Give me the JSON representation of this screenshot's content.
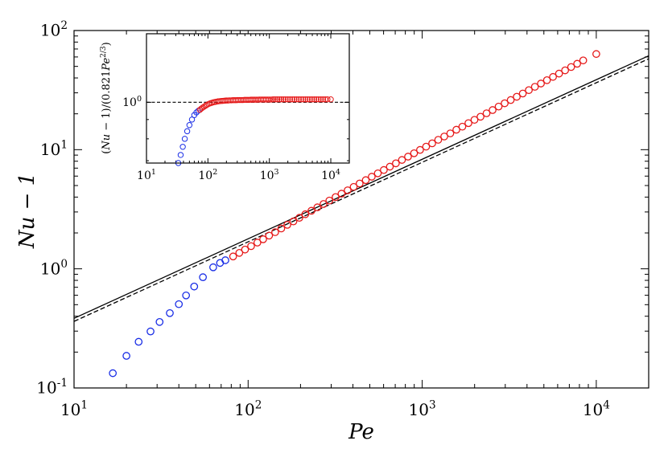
{
  "chart_data": [
    {
      "type": "scatter",
      "xscale": "log",
      "yscale": "log",
      "xlim": [
        10,
        20000
      ],
      "ylim": [
        0.1,
        100
      ],
      "xlabel": "Pe",
      "ylabel": "Nu − 1",
      "x_tick_labels": [
        {
          "base": "10",
          "exp": "1"
        },
        {
          "base": "10",
          "exp": "2"
        },
        {
          "base": "10",
          "exp": "3"
        },
        {
          "base": "10",
          "exp": "4"
        }
      ],
      "y_tick_labels": [
        {
          "base": "10",
          "exp": "-1"
        },
        {
          "base": "10",
          "exp": "0"
        },
        {
          "base": "10",
          "exp": "1"
        },
        {
          "base": "10",
          "exp": "2"
        }
      ],
      "grid": false,
      "series": [
        {
          "marker": "open-circle",
          "color": "#1a2ee6",
          "points": [
            [
              16.7,
              0.133
            ],
            [
              20.0,
              0.186
            ],
            [
              23.5,
              0.244
            ],
            [
              27.5,
              0.298
            ],
            [
              31.0,
              0.358
            ],
            [
              35.5,
              0.425
            ],
            [
              40.0,
              0.505
            ],
            [
              44.0,
              0.598
            ],
            [
              49.0,
              0.71
            ],
            [
              55.0,
              0.85
            ],
            [
              63.0,
              1.03
            ],
            [
              69.0,
              1.12
            ],
            [
              74.0,
              1.18
            ]
          ]
        },
        {
          "marker": "open-circle",
          "color": "#e61a1a",
          "points": [
            [
              82,
              1.27
            ],
            [
              89,
              1.36
            ],
            [
              96,
              1.45
            ],
            [
              104,
              1.55
            ],
            [
              113,
              1.66
            ],
            [
              122,
              1.77
            ],
            [
              132,
              1.9
            ],
            [
              143,
              2.03
            ],
            [
              155,
              2.18
            ],
            [
              168,
              2.34
            ],
            [
              182,
              2.5
            ],
            [
              197,
              2.68
            ],
            [
              213,
              2.87
            ],
            [
              231,
              3.07
            ],
            [
              250,
              3.28
            ],
            [
              271,
              3.5
            ],
            [
              293,
              3.74
            ],
            [
              318,
              4.0
            ],
            [
              344,
              4.27
            ],
            [
              373,
              4.56
            ],
            [
              404,
              4.87
            ],
            [
              437,
              5.2
            ],
            [
              474,
              5.55
            ],
            [
              513,
              5.93
            ],
            [
              556,
              6.33
            ],
            [
              602,
              6.75
            ],
            [
              652,
              7.2
            ],
            [
              706,
              7.68
            ],
            [
              765,
              8.2
            ],
            [
              829,
              8.74
            ],
            [
              898,
              9.33
            ],
            [
              972,
              9.95
            ],
            [
              1053,
              10.6
            ],
            [
              1141,
              11.3
            ],
            [
              1236,
              12.1
            ],
            [
              1339,
              12.9
            ],
            [
              1450,
              13.7
            ],
            [
              1571,
              14.7
            ],
            [
              1701,
              15.6
            ],
            [
              1843,
              16.7
            ],
            [
              1996,
              17.8
            ],
            [
              2162,
              18.9
            ],
            [
              2342,
              20.2
            ],
            [
              2537,
              21.5
            ],
            [
              2748,
              23.0
            ],
            [
              2977,
              24.5
            ],
            [
              3224,
              26.1
            ],
            [
              3493,
              27.8
            ],
            [
              3783,
              29.6
            ],
            [
              4098,
              31.6
            ],
            [
              4439,
              33.7
            ],
            [
              4808,
              35.9
            ],
            [
              5208,
              38.3
            ],
            [
              5642,
              40.8
            ],
            [
              6111,
              43.5
            ],
            [
              6620,
              46.3
            ],
            [
              7170,
              49.4
            ],
            [
              7767,
              52.6
            ],
            [
              8413,
              56.1
            ],
            [
              10000,
              63.5
            ]
          ]
        },
        {
          "line_style": "solid",
          "color": "#000000",
          "points": [
            [
              10,
              0.384
            ],
            [
              20000,
              61.4
            ]
          ]
        },
        {
          "line_style": "dashed",
          "color": "#000000",
          "points": [
            [
              10,
              0.362
            ],
            [
              20000,
              57.9
            ]
          ]
        }
      ]
    },
    {
      "type": "scatter",
      "inset": true,
      "xscale": "log",
      "yscale": "log",
      "xlim": [
        10,
        20000
      ],
      "ylim": [
        0.69,
        1.52
      ],
      "xlabel": "",
      "ylabel": "(Nu − 1)/(0.821Pe^{2/3})",
      "ylabel_parts": [
        "(",
        "Nu",
        " − 1)/(0.821",
        "Pe",
        "2/3",
        ")"
      ],
      "x_tick_labels": [
        {
          "base": "10",
          "exp": "1"
        },
        {
          "base": "10",
          "exp": "2"
        },
        {
          "base": "10",
          "exp": "3"
        },
        {
          "base": "10",
          "exp": "4"
        }
      ],
      "y_tick_labels": [
        {
          "base": "10",
          "exp": "0"
        }
      ],
      "grid": false,
      "series": [
        {
          "marker": "open-circle",
          "color": "#1a2ee6",
          "points": [
            [
              33,
              0.69
            ],
            [
              36,
              0.725
            ],
            [
              39,
              0.762
            ],
            [
              42,
              0.8
            ],
            [
              46,
              0.838
            ],
            [
              50,
              0.87
            ],
            [
              55,
              0.9
            ],
            [
              60,
              0.925
            ],
            [
              65,
              0.94
            ],
            [
              70,
              0.95
            ]
          ]
        },
        {
          "marker": "open-circle",
          "color": "#e61a1a",
          "points": [
            [
              74,
              0.955
            ],
            [
              78,
              0.962
            ],
            [
              82,
              0.968
            ],
            [
              87,
              0.974
            ],
            [
              92,
              0.98
            ],
            [
              97,
              0.985
            ],
            [
              103,
              0.99
            ],
            [
              109,
              0.994
            ],
            [
              116,
              0.997
            ],
            [
              123,
              1.0
            ],
            [
              130,
              1.002
            ],
            [
              138,
              1.004
            ],
            [
              147,
              1.006
            ],
            [
              156,
              1.007
            ],
            [
              166,
              1.008
            ],
            [
              176,
              1.009
            ],
            [
              187,
              1.01
            ],
            [
              199,
              1.011
            ],
            [
              212,
              1.011
            ],
            [
              225,
              1.012
            ],
            [
              240,
              1.012
            ],
            [
              255,
              1.013
            ],
            [
              271,
              1.013
            ],
            [
              289,
              1.013
            ],
            [
              307,
              1.014
            ],
            [
              327,
              1.014
            ],
            [
              348,
              1.014
            ],
            [
              370,
              1.014
            ],
            [
              394,
              1.015
            ],
            [
              419,
              1.015
            ],
            [
              446,
              1.015
            ],
            [
              475,
              1.015
            ],
            [
              505,
              1.016
            ],
            [
              537,
              1.016
            ],
            [
              572,
              1.016
            ],
            [
              609,
              1.016
            ],
            [
              648,
              1.016
            ],
            [
              689,
              1.017
            ],
            [
              733,
              1.017
            ],
            [
              780,
              1.017
            ],
            [
              830,
              1.017
            ],
            [
              883,
              1.017
            ],
            [
              940,
              1.017
            ],
            [
              1000,
              1.017
            ],
            [
              1070,
              1.017
            ],
            [
              1150,
              1.018
            ],
            [
              1240,
              1.018
            ],
            [
              1340,
              1.018
            ],
            [
              1450,
              1.018
            ],
            [
              1570,
              1.018
            ],
            [
              1700,
              1.018
            ],
            [
              1840,
              1.018
            ],
            [
              2000,
              1.018
            ],
            [
              2170,
              1.018
            ],
            [
              2360,
              1.018
            ],
            [
              2560,
              1.018
            ],
            [
              2780,
              1.018
            ],
            [
              3020,
              1.018
            ],
            [
              3280,
              1.018
            ],
            [
              3560,
              1.018
            ],
            [
              3870,
              1.018
            ],
            [
              4200,
              1.018
            ],
            [
              4560,
              1.018
            ],
            [
              4950,
              1.018
            ],
            [
              5380,
              1.018
            ],
            [
              5840,
              1.018
            ],
            [
              6340,
              1.018
            ],
            [
              6890,
              1.018
            ],
            [
              7480,
              1.018
            ],
            [
              8120,
              1.018
            ],
            [
              8820,
              1.018
            ],
            [
              10000,
              1.018
            ]
          ]
        },
        {
          "line_style": "dashed",
          "color": "#000000",
          "points": [
            [
              10,
              1.0
            ],
            [
              20000,
              1.0
            ]
          ]
        }
      ]
    }
  ]
}
